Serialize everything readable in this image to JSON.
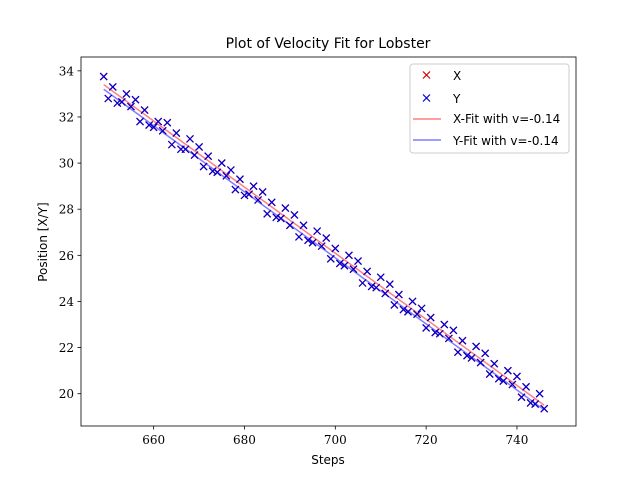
{
  "chart_data": {
    "type": "scatter",
    "title": "Plot of Velocity Fit for Lobster",
    "xlabel": "Steps",
    "ylabel": "Position [X/Y]",
    "xlim": [
      644,
      753
    ],
    "ylim": [
      18.6,
      34.6
    ],
    "xticks": [
      660,
      680,
      700,
      720,
      740
    ],
    "yticks": [
      20,
      22,
      24,
      26,
      28,
      30,
      32,
      34
    ],
    "grid": false,
    "legend_position": "top-right",
    "x": [
      649,
      650,
      651,
      652,
      653,
      654,
      655,
      656,
      657,
      658,
      659,
      660,
      661,
      662,
      663,
      664,
      665,
      666,
      667,
      668,
      669,
      670,
      671,
      672,
      673,
      674,
      675,
      676,
      677,
      678,
      679,
      680,
      681,
      682,
      683,
      684,
      685,
      686,
      687,
      688,
      689,
      690,
      691,
      692,
      693,
      694,
      695,
      696,
      697,
      698,
      699,
      700,
      701,
      702,
      703,
      704,
      705,
      706,
      707,
      708,
      709,
      710,
      711,
      712,
      713,
      714,
      715,
      716,
      717,
      718,
      719,
      720,
      721,
      722,
      723,
      724,
      725,
      726,
      727,
      728,
      729,
      730,
      731,
      732,
      733,
      734,
      735,
      736,
      737,
      738,
      739,
      740,
      741,
      742,
      743,
      744,
      745,
      746
    ],
    "series": [
      {
        "name": "X",
        "marker": "x",
        "color": "#d40000",
        "values": [
          33.75,
          32.8,
          33.3,
          32.6,
          32.65,
          33.0,
          32.45,
          32.75,
          31.8,
          32.3,
          31.65,
          31.55,
          31.8,
          31.4,
          31.75,
          30.8,
          31.3,
          30.6,
          30.6,
          31.05,
          30.35,
          30.7,
          29.85,
          30.3,
          29.65,
          29.6,
          30.0,
          29.45,
          29.7,
          28.85,
          29.3,
          28.6,
          28.65,
          29.0,
          28.4,
          28.75,
          27.8,
          28.3,
          27.65,
          27.6,
          28.05,
          27.3,
          27.75,
          26.8,
          27.3,
          26.65,
          26.55,
          27.05,
          26.4,
          26.75,
          25.85,
          26.3,
          25.65,
          25.55,
          26.0,
          25.4,
          25.75,
          24.8,
          25.3,
          24.65,
          24.6,
          25.05,
          24.35,
          24.75,
          23.85,
          24.3,
          23.65,
          23.55,
          24.0,
          23.45,
          23.7,
          22.85,
          23.3,
          22.65,
          22.6,
          23.0,
          22.4,
          22.75,
          21.8,
          22.3,
          21.65,
          21.55,
          22.05,
          21.35,
          21.75,
          20.85,
          21.3,
          20.65,
          20.55,
          21.0,
          20.4,
          20.75,
          19.85,
          20.3,
          19.6,
          19.55,
          20.0,
          19.35
        ]
      },
      {
        "name": "Y",
        "marker": "x",
        "color": "#0000d4",
        "values": [
          33.75,
          32.8,
          33.3,
          32.6,
          32.65,
          33.0,
          32.45,
          32.75,
          31.8,
          32.3,
          31.65,
          31.55,
          31.8,
          31.4,
          31.75,
          30.8,
          31.3,
          30.6,
          30.6,
          31.05,
          30.35,
          30.7,
          29.85,
          30.3,
          29.65,
          29.6,
          30.0,
          29.45,
          29.7,
          28.85,
          29.3,
          28.6,
          28.65,
          29.0,
          28.4,
          28.75,
          27.8,
          28.3,
          27.65,
          27.6,
          28.05,
          27.3,
          27.75,
          26.8,
          27.3,
          26.65,
          26.55,
          27.05,
          26.4,
          26.75,
          25.85,
          26.3,
          25.65,
          25.55,
          26.0,
          25.4,
          25.75,
          24.8,
          25.3,
          24.65,
          24.6,
          25.05,
          24.35,
          24.75,
          23.85,
          24.3,
          23.65,
          23.55,
          24.0,
          23.45,
          23.7,
          22.85,
          23.3,
          22.65,
          22.6,
          23.0,
          22.4,
          22.75,
          21.8,
          22.3,
          21.65,
          21.55,
          22.05,
          21.35,
          21.75,
          20.85,
          21.3,
          20.65,
          20.55,
          21.0,
          20.4,
          20.75,
          19.85,
          20.3,
          19.6,
          19.55,
          20.0,
          19.35
        ]
      }
    ],
    "fits": [
      {
        "name": "X-Fit with v=-0.14",
        "color": "#ff7f7f",
        "x": [
          649,
          746
        ],
        "y": [
          33.4,
          19.5
        ]
      },
      {
        "name": "Y-Fit with v=-0.14",
        "color": "#7f7fff",
        "x": [
          649,
          746
        ],
        "y": [
          33.2,
          19.3
        ]
      }
    ],
    "legend": [
      {
        "label": "X",
        "kind": "marker",
        "color": "#d40000"
      },
      {
        "label": "Y",
        "kind": "marker",
        "color": "#0000d4"
      },
      {
        "label": "X-Fit with v=-0.14",
        "kind": "line",
        "color": "#ff7f7f"
      },
      {
        "label": "Y-Fit with v=-0.14",
        "kind": "line",
        "color": "#7f7fff"
      }
    ]
  }
}
